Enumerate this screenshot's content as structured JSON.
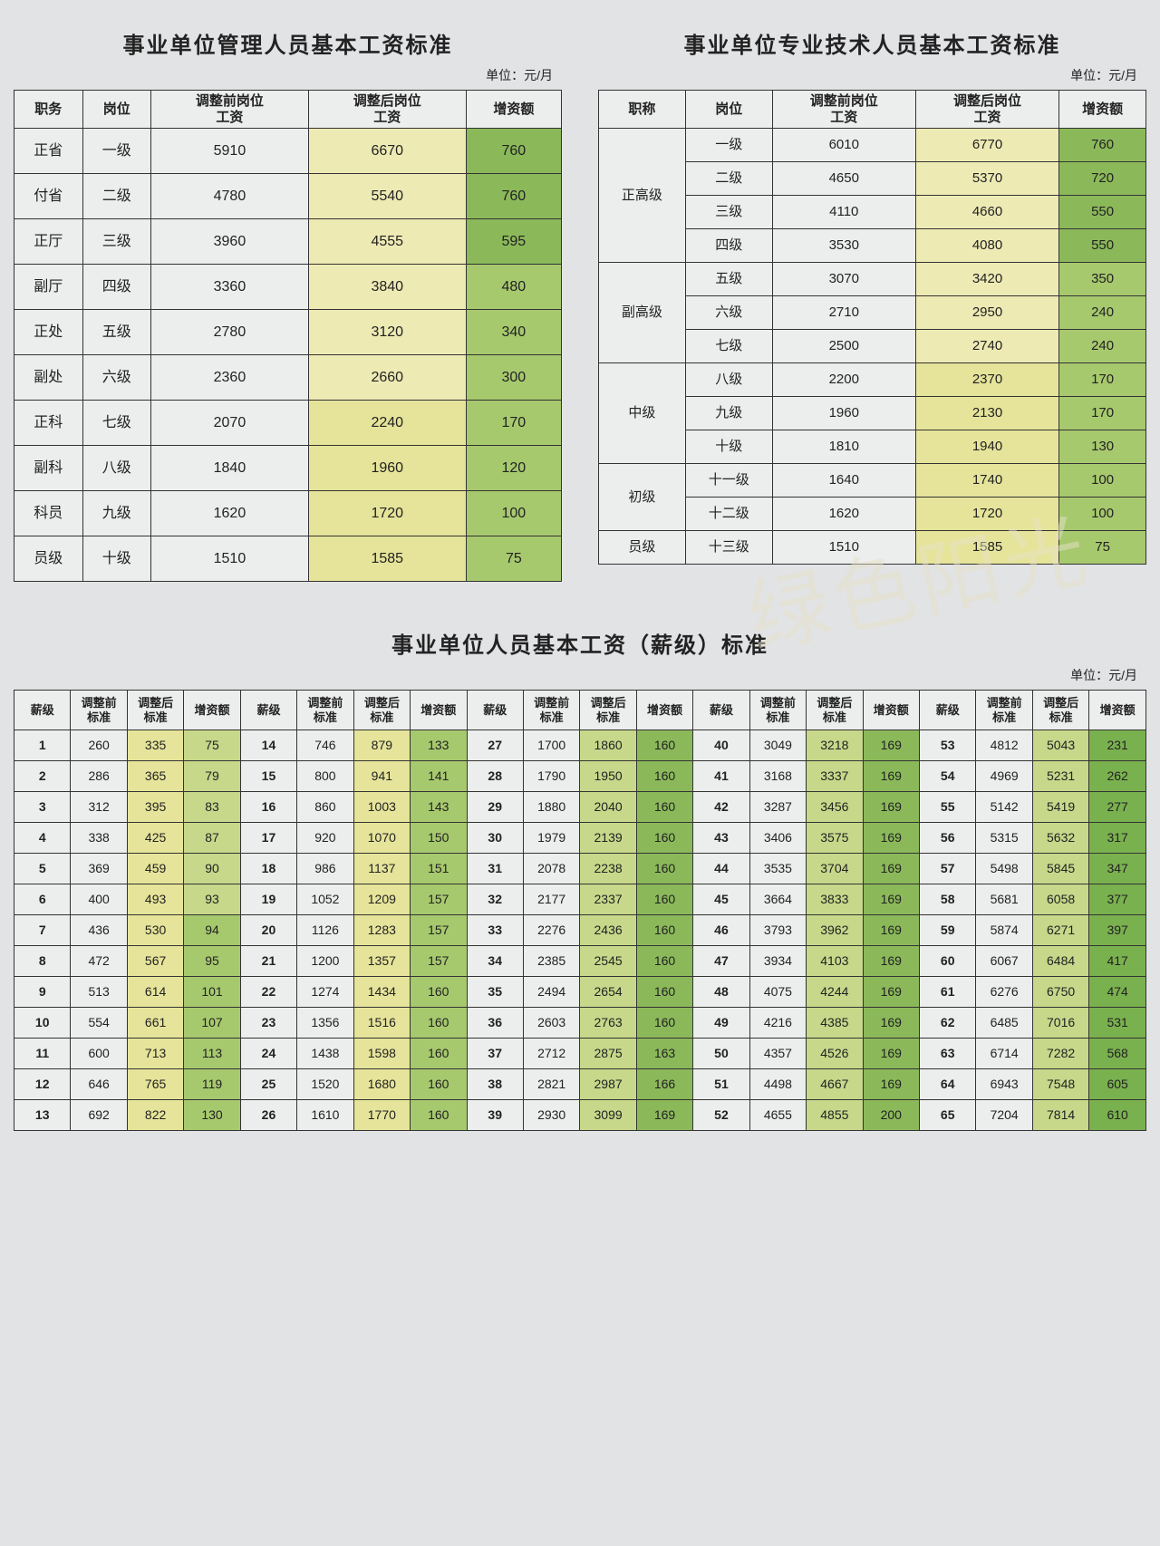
{
  "unit_label": "单位：元/月",
  "colors": {
    "bg_page": "#e2e3e5",
    "bg_cell_plain": "#eceded",
    "border": "#333333",
    "yellow_light": "#eeeab4",
    "yellow_mid": "#e6e49a",
    "green_light": "#c7d88a",
    "green_mid": "#a7c96e",
    "green_dark": "#8bb95a",
    "green_darker": "#7ab14f"
  },
  "table1": {
    "title": "事业单位管理人员基本工资标准",
    "columns": [
      "职务",
      "岗位",
      "调整前岗位\n工资",
      "调整后岗位\n工资",
      "增资额"
    ],
    "rows": [
      [
        "正省",
        "一级",
        "5910",
        "6670",
        "760"
      ],
      [
        "付省",
        "二级",
        "4780",
        "5540",
        "760"
      ],
      [
        "正厅",
        "三级",
        "3960",
        "4555",
        "595"
      ],
      [
        "副厅",
        "四级",
        "3360",
        "3840",
        "480"
      ],
      [
        "正处",
        "五级",
        "2780",
        "3120",
        "340"
      ],
      [
        "副处",
        "六级",
        "2360",
        "2660",
        "300"
      ],
      [
        "正科",
        "七级",
        "2070",
        "2240",
        "170"
      ],
      [
        "副科",
        "八级",
        "1840",
        "1960",
        "120"
      ],
      [
        "科员",
        "九级",
        "1620",
        "1720",
        "100"
      ],
      [
        "员级",
        "十级",
        "1510",
        "1585",
        "75"
      ]
    ],
    "col3_colors": [
      "#eeeab4",
      "#eeeab4",
      "#eeeab4",
      "#eeeab4",
      "#eeeab4",
      "#eeeab4",
      "#e6e49a",
      "#e6e49a",
      "#e6e49a",
      "#e6e49a"
    ],
    "col4_colors": [
      "#8bb95a",
      "#8bb95a",
      "#8bb95a",
      "#a7c96e",
      "#a7c96e",
      "#a7c96e",
      "#a7c96e",
      "#a7c96e",
      "#a7c96e",
      "#a7c96e"
    ]
  },
  "table2": {
    "title": "事业单位专业技术人员基本工资标准",
    "columns": [
      "职称",
      "岗位",
      "调整前岗位\n工资",
      "调整后岗位\n工资",
      "增资额"
    ],
    "groups": [
      {
        "label": "正高级",
        "rows": [
          [
            "一级",
            "6010",
            "6770",
            "760"
          ],
          [
            "二级",
            "4650",
            "5370",
            "720"
          ],
          [
            "三级",
            "4110",
            "4660",
            "550"
          ],
          [
            "四级",
            "3530",
            "4080",
            "550"
          ]
        ]
      },
      {
        "label": "副高级",
        "rows": [
          [
            "五级",
            "3070",
            "3420",
            "350"
          ],
          [
            "六级",
            "2710",
            "2950",
            "240"
          ],
          [
            "七级",
            "2500",
            "2740",
            "240"
          ]
        ]
      },
      {
        "label": "中级",
        "rows": [
          [
            "八级",
            "2200",
            "2370",
            "170"
          ],
          [
            "九级",
            "1960",
            "2130",
            "170"
          ],
          [
            "十级",
            "1810",
            "1940",
            "130"
          ]
        ]
      },
      {
        "label": "初级",
        "rows": [
          [
            "十一级",
            "1640",
            "1740",
            "100"
          ],
          [
            "十二级",
            "1620",
            "1720",
            "100"
          ]
        ]
      },
      {
        "label": "员级",
        "rows": [
          [
            "十三级",
            "1510",
            "1585",
            "75"
          ]
        ]
      }
    ],
    "col3_colors": [
      "#eeeab4",
      "#eeeab4",
      "#eeeab4",
      "#eeeab4",
      "#eeeab4",
      "#eeeab4",
      "#eeeab4",
      "#e6e49a",
      "#e6e49a",
      "#e6e49a",
      "#e6e49a",
      "#e6e49a",
      "#e6e49a"
    ],
    "col4_colors": [
      "#8bb95a",
      "#8bb95a",
      "#8bb95a",
      "#8bb95a",
      "#a7c96e",
      "#a7c96e",
      "#a7c96e",
      "#a7c96e",
      "#a7c96e",
      "#a7c96e",
      "#a7c96e",
      "#a7c96e",
      "#a7c96e"
    ]
  },
  "table3": {
    "title": "事业单位人员基本工资（薪级）标准",
    "group_headers": [
      "薪级",
      "调整前\n标准",
      "调整后\n标准",
      "增资额"
    ],
    "rows": [
      [
        "1",
        "260",
        "335",
        "75"
      ],
      [
        "2",
        "286",
        "365",
        "79"
      ],
      [
        "3",
        "312",
        "395",
        "83"
      ],
      [
        "4",
        "338",
        "425",
        "87"
      ],
      [
        "5",
        "369",
        "459",
        "90"
      ],
      [
        "6",
        "400",
        "493",
        "93"
      ],
      [
        "7",
        "436",
        "530",
        "94"
      ],
      [
        "8",
        "472",
        "567",
        "95"
      ],
      [
        "9",
        "513",
        "614",
        "101"
      ],
      [
        "10",
        "554",
        "661",
        "107"
      ],
      [
        "11",
        "600",
        "713",
        "113"
      ],
      [
        "12",
        "646",
        "765",
        "119"
      ],
      [
        "13",
        "692",
        "822",
        "130"
      ],
      [
        "14",
        "746",
        "879",
        "133"
      ],
      [
        "15",
        "800",
        "941",
        "141"
      ],
      [
        "16",
        "860",
        "1003",
        "143"
      ],
      [
        "17",
        "920",
        "1070",
        "150"
      ],
      [
        "18",
        "986",
        "1137",
        "151"
      ],
      [
        "19",
        "1052",
        "1209",
        "157"
      ],
      [
        "20",
        "1126",
        "1283",
        "157"
      ],
      [
        "21",
        "1200",
        "1357",
        "157"
      ],
      [
        "22",
        "1274",
        "1434",
        "160"
      ],
      [
        "23",
        "1356",
        "1516",
        "160"
      ],
      [
        "24",
        "1438",
        "1598",
        "160"
      ],
      [
        "25",
        "1520",
        "1680",
        "160"
      ],
      [
        "26",
        "1610",
        "1770",
        "160"
      ],
      [
        "27",
        "1700",
        "1860",
        "160"
      ],
      [
        "28",
        "1790",
        "1950",
        "160"
      ],
      [
        "29",
        "1880",
        "2040",
        "160"
      ],
      [
        "30",
        "1979",
        "2139",
        "160"
      ],
      [
        "31",
        "2078",
        "2238",
        "160"
      ],
      [
        "32",
        "2177",
        "2337",
        "160"
      ],
      [
        "33",
        "2276",
        "2436",
        "160"
      ],
      [
        "34",
        "2385",
        "2545",
        "160"
      ],
      [
        "35",
        "2494",
        "2654",
        "160"
      ],
      [
        "36",
        "2603",
        "2763",
        "160"
      ],
      [
        "37",
        "2712",
        "2875",
        "163"
      ],
      [
        "38",
        "2821",
        "2987",
        "166"
      ],
      [
        "39",
        "2930",
        "3099",
        "169"
      ],
      [
        "40",
        "3049",
        "3218",
        "169"
      ],
      [
        "41",
        "3168",
        "3337",
        "169"
      ],
      [
        "42",
        "3287",
        "3456",
        "169"
      ],
      [
        "43",
        "3406",
        "3575",
        "169"
      ],
      [
        "44",
        "3535",
        "3704",
        "169"
      ],
      [
        "45",
        "3664",
        "3833",
        "169"
      ],
      [
        "46",
        "3793",
        "3962",
        "169"
      ],
      [
        "47",
        "3934",
        "4103",
        "169"
      ],
      [
        "48",
        "4075",
        "4244",
        "169"
      ],
      [
        "49",
        "4216",
        "4385",
        "169"
      ],
      [
        "50",
        "4357",
        "4526",
        "169"
      ],
      [
        "51",
        "4498",
        "4667",
        "169"
      ],
      [
        "52",
        "4655",
        "4855",
        "200"
      ],
      [
        "53",
        "4812",
        "5043",
        "231"
      ],
      [
        "54",
        "4969",
        "5231",
        "262"
      ],
      [
        "55",
        "5142",
        "5419",
        "277"
      ],
      [
        "56",
        "5315",
        "5632",
        "317"
      ],
      [
        "57",
        "5498",
        "5845",
        "347"
      ],
      [
        "58",
        "5681",
        "6058",
        "377"
      ],
      [
        "59",
        "5874",
        "6271",
        "397"
      ],
      [
        "60",
        "6067",
        "6484",
        "417"
      ],
      [
        "61",
        "6276",
        "6750",
        "474"
      ],
      [
        "62",
        "6485",
        "7016",
        "531"
      ],
      [
        "63",
        "6714",
        "7282",
        "568"
      ],
      [
        "64",
        "6943",
        "7548",
        "605"
      ],
      [
        "65",
        "7204",
        "7814",
        "610"
      ]
    ],
    "col2_color_fn_thresholds": {
      "yellow_mid_min": 0,
      "green_light_min": 9999
    },
    "col2_colors_group": {
      "0": "#e6e49a",
      "1": "#e6e49a",
      "2": "#c7d88a",
      "3": "#c7d88a",
      "4": "#c7d88a"
    },
    "col3_colors_group": {
      "0_early": "#c7d88a",
      "0_late": "#a7c96e",
      "1": "#a7c96e",
      "2": "#8bb95a",
      "3": "#8bb95a",
      "4": "#7ab14f"
    }
  },
  "watermark_text": "绿色阳光"
}
